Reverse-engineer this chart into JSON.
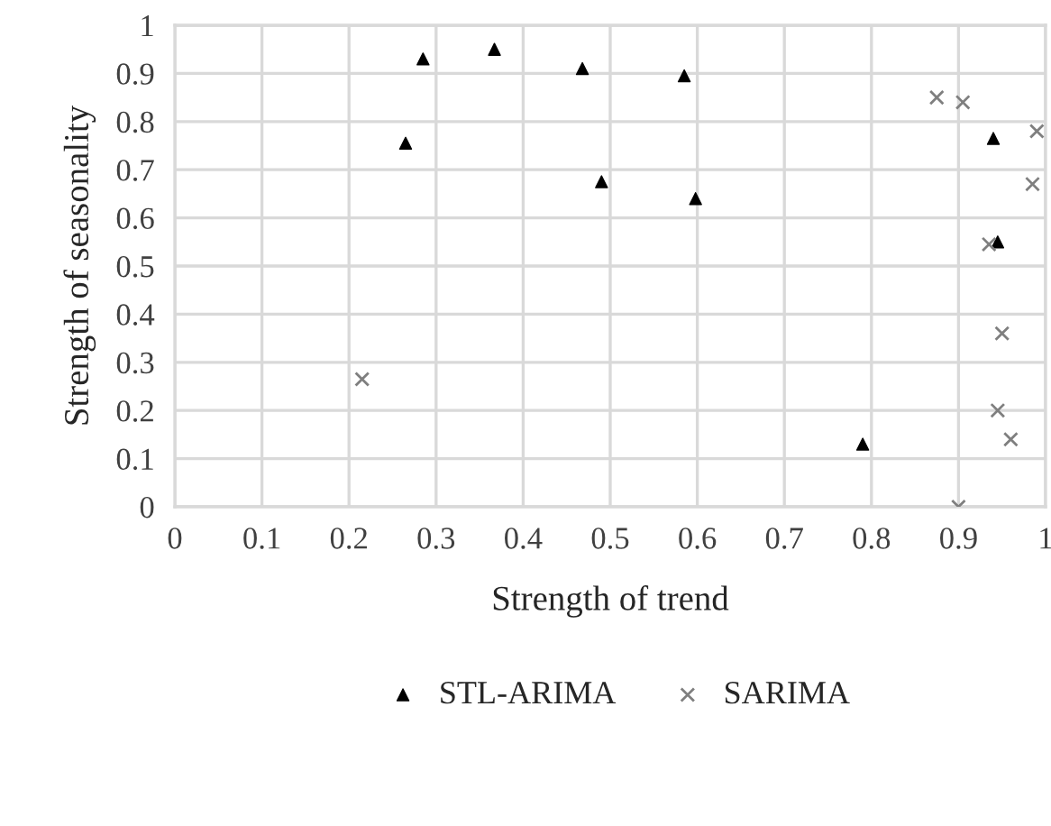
{
  "chart_data": {
    "type": "scatter",
    "xlabel": "Strength of trend",
    "ylabel": "Strength of seasonality",
    "series": [
      {
        "name": "STL-ARIMA",
        "color": "#000000",
        "marker": "triangle",
        "x": [
          0.265,
          0.285,
          0.367,
          0.468,
          0.49,
          0.585,
          0.598,
          0.79,
          0.94,
          0.945
        ],
        "values": [
          0.755,
          0.93,
          0.95,
          0.91,
          0.675,
          0.895,
          0.64,
          0.13,
          0.765,
          0.55
        ]
      },
      {
        "name": "SARIMA",
        "color": "#7f7f7f",
        "marker": "cross",
        "x": [
          0.215,
          0.875,
          0.905,
          0.99,
          0.985,
          0.935,
          0.95,
          0.945,
          0.96,
          0.9
        ],
        "values": [
          0.265,
          0.85,
          0.84,
          0.78,
          0.67,
          0.545,
          0.36,
          0.2,
          0.14,
          0.0
        ]
      }
    ],
    "xlim": [
      0,
      1
    ],
    "ylim": [
      0,
      1
    ],
    "xticks": [
      0,
      0.1,
      0.2,
      0.3,
      0.4,
      0.5,
      0.6,
      0.7,
      0.8,
      0.9,
      1
    ],
    "yticks": [
      0,
      0.1,
      0.2,
      0.3,
      0.4,
      0.5,
      0.6,
      0.7,
      0.8,
      0.9,
      1
    ],
    "grid": true,
    "legend": "bottom"
  }
}
